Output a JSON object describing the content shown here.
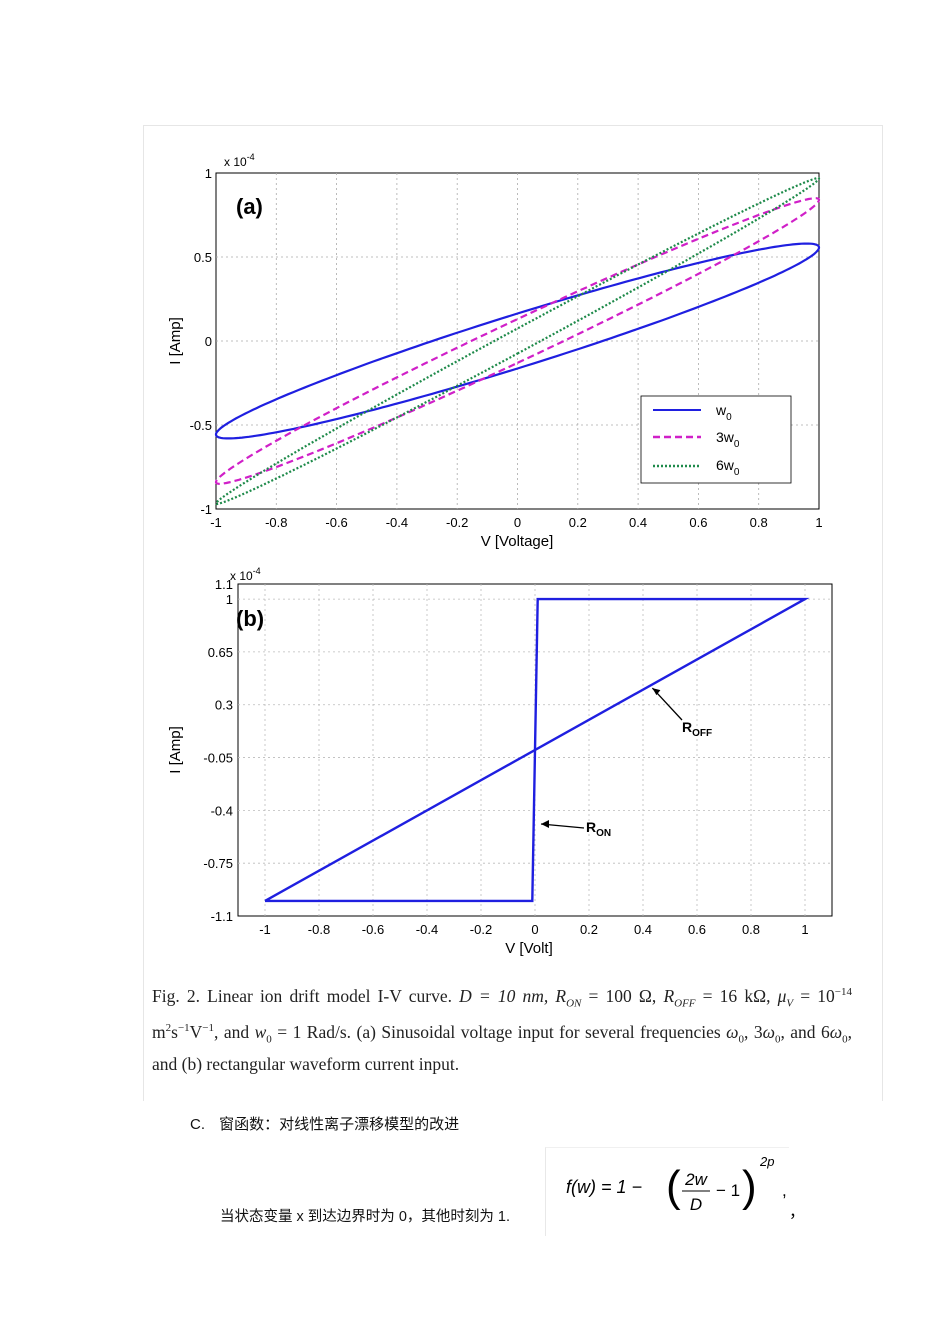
{
  "figure": {
    "chart_data": [
      {
        "type": "line",
        "panel_label": "(a)",
        "xlabel": "V [Voltage]",
        "ylabel": "I [Amp]",
        "y_exponent": "x 10",
        "y_exponent_power": "-4",
        "xlim": [
          -1,
          1
        ],
        "ylim": [
          -1,
          1
        ],
        "x_ticks": [
          -1,
          -0.8,
          -0.6,
          -0.4,
          -0.2,
          0,
          0.2,
          0.4,
          0.6,
          0.8,
          1
        ],
        "x_tick_labels": [
          "-1",
          "-0.8",
          "-0.6",
          "-0.4",
          "-0.2",
          "0",
          "0.2",
          "0.4",
          "0.6",
          "0.8",
          "1"
        ],
        "y_ticks": [
          -1,
          -0.5,
          0,
          0.5,
          1
        ],
        "y_tick_labels": [
          "-1",
          "-0.5",
          "0",
          "0.5",
          "1"
        ],
        "grid": true,
        "legend_position": "bottom-right",
        "series": [
          {
            "name": "w",
            "sub": "0",
            "color": "#1f1fe0",
            "style": "solid",
            "peak_current": 0.58,
            "loop_width": 0.13
          },
          {
            "name": "3w",
            "sub": "0",
            "color": "#d020c8",
            "style": "dashed",
            "peak_current": 0.85,
            "loop_width": 0.07
          },
          {
            "name": "6w",
            "sub": "0",
            "color": "#1e8a4a",
            "style": "dotted",
            "peak_current": 0.97,
            "loop_width": 0.035
          }
        ]
      },
      {
        "type": "line",
        "panel_label": "(b)",
        "xlabel": "V [Volt]",
        "ylabel": "I [Amp]",
        "y_exponent": "x 10",
        "y_exponent_power": "-4",
        "xlim": [
          -1.1,
          1.1
        ],
        "ylim": [
          -1.1,
          1.1
        ],
        "x_ticks": [
          -1,
          -0.8,
          -0.6,
          -0.4,
          -0.2,
          0,
          0.2,
          0.4,
          0.6,
          0.8,
          1
        ],
        "x_tick_labels": [
          "-1",
          "-0.8",
          "-0.6",
          "-0.4",
          "-0.2",
          "0",
          "0.2",
          "0.4",
          "0.6",
          "0.8",
          "1"
        ],
        "y_ticks": [
          1.1,
          1,
          0.65,
          0.3,
          -0.05,
          -0.4,
          -0.75,
          -1.1
        ],
        "y_tick_labels": [
          "1.1",
          "1",
          "0.65",
          "0.3",
          "-0.05",
          "-0.4",
          "-0.75",
          "-1.1"
        ],
        "grid": true,
        "series": [
          {
            "name": "I-V",
            "color": "#1f1fe0",
            "points": [
              [
                -1,
                -1
              ],
              [
                -0.01,
                -1
              ],
              [
                0.01,
                1
              ],
              [
                1,
                1
              ],
              [
                -1,
                -1
              ]
            ]
          }
        ],
        "annotations": [
          {
            "text": "R",
            "sub": "OFF",
            "target": [
              0.42,
              0.43
            ]
          },
          {
            "text": "R",
            "sub": "ON",
            "target": [
              0.0,
              -0.52
            ]
          }
        ]
      }
    ]
  },
  "caption": {
    "fig_label": "Fig. 2.",
    "part1": "Linear ion drift model I-V curve.",
    "d_eq": "D = 10 nm,",
    "ron_eq": "R",
    "ron_sub": "ON",
    "ron_val": " = 100 Ω,",
    "roff_eq": "R",
    "roff_sub": "OFF",
    "roff_val": " = 16 kΩ,",
    "mu_eq": "μ",
    "mu_sub": "V",
    "mu_val": " = 10",
    "mu_exp": "−14",
    "mu_units": " m",
    "mu_units_exp1": "2",
    "mu_units_s": "s",
    "mu_units_exp2": "−1",
    "mu_units_v": "V",
    "mu_units_exp3": "−1",
    "and_w": ", and ",
    "w0": "w",
    "w0_sub": "0",
    "w0_val": " = 1 Rad/s.",
    "part_a": "(a) Sinusoidal voltage input for several frequencies ",
    "omega0": "ω",
    "omega_sub": "0",
    "comma3": ", 3",
    "and6": ", and 6",
    "part_b": ", and (b) rectangular waveform current input."
  },
  "section": {
    "letter": "C.",
    "title": "窗函数：对线性离子漂移模型的改进"
  },
  "body": {
    "text": "当状态变量 x 到达边界时为 0，其他时刻为 1.",
    "trailing": "，"
  },
  "formula": {
    "lhs": "f(w) = 1 −",
    "num": "2w",
    "den": "D",
    "minus_one": "− 1",
    "exponent": "2p",
    "tail": ","
  }
}
